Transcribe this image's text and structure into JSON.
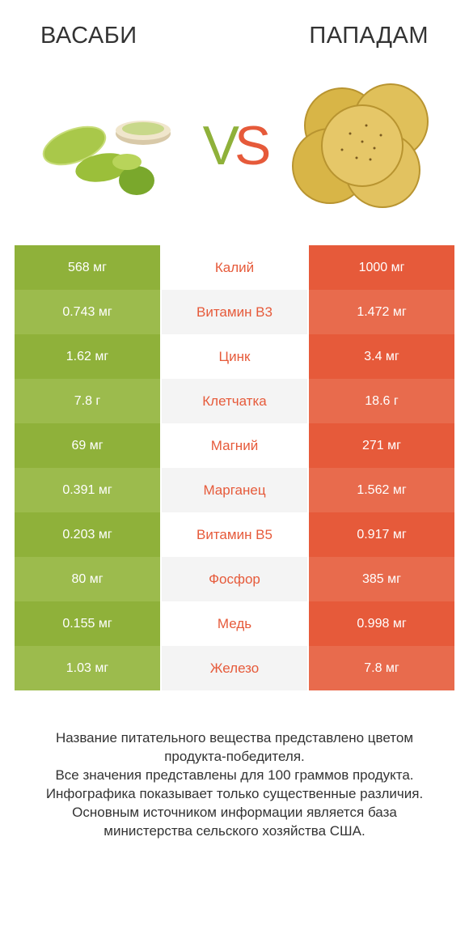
{
  "header": {
    "left_title": "ВАСАБИ",
    "right_title": "ПАПАДАМ"
  },
  "vs": {
    "v": "V",
    "s": "S"
  },
  "colors": {
    "left": "#8fb13a",
    "right": "#e65a3a",
    "left_alt": "#9cbb4d",
    "right_alt": "#e86b4d",
    "mid_alt": "#f4f4f4",
    "text_white": "#ffffff"
  },
  "rows": [
    {
      "left": "568 мг",
      "label": "Калий",
      "right": "1000 мг",
      "winner": "right"
    },
    {
      "left": "0.743 мг",
      "label": "Витамин B3",
      "right": "1.472 мг",
      "winner": "right"
    },
    {
      "left": "1.62 мг",
      "label": "Цинк",
      "right": "3.4 мг",
      "winner": "right"
    },
    {
      "left": "7.8 г",
      "label": "Клетчатка",
      "right": "18.6 г",
      "winner": "right"
    },
    {
      "left": "69 мг",
      "label": "Магний",
      "right": "271 мг",
      "winner": "right"
    },
    {
      "left": "0.391 мг",
      "label": "Марганец",
      "right": "1.562 мг",
      "winner": "right"
    },
    {
      "left": "0.203 мг",
      "label": "Витамин B5",
      "right": "0.917 мг",
      "winner": "right"
    },
    {
      "left": "80 мг",
      "label": "Фосфор",
      "right": "385 мг",
      "winner": "right"
    },
    {
      "left": "0.155 мг",
      "label": "Медь",
      "right": "0.998 мг",
      "winner": "right"
    },
    {
      "left": "1.03 мг",
      "label": "Железо",
      "right": "7.8 мг",
      "winner": "right"
    }
  ],
  "footer": {
    "l1": "Название питательного вещества представлено цветом продукта-победителя.",
    "l2": "Все значения представлены для 100 граммов продукта.",
    "l3": "Инфографика показывает только существенные различия.",
    "l4": "Основным источником информации является база министерства сельского хозяйства США."
  }
}
